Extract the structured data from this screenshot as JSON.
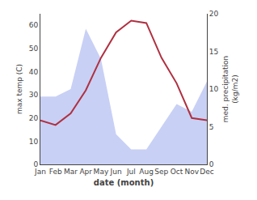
{
  "chart_data": {
    "type": "line",
    "categories": [
      "Jan",
      "Feb",
      "Mar",
      "Apr",
      "May",
      "Jun",
      "Jul",
      "Aug",
      "Sep",
      "Oct",
      "Nov",
      "Dec"
    ],
    "xlabel": "date (month)",
    "ylabel": "max temp (C)",
    "y2label": "med. precipitation\n(kg/m2)",
    "ylim": [
      0,
      65
    ],
    "yticks": [
      0,
      10,
      20,
      30,
      40,
      50,
      60
    ],
    "y2lim": [
      0,
      20
    ],
    "y2ticks": [
      0,
      5,
      10,
      15,
      20
    ],
    "grid": false,
    "series": [
      {
        "type": "line",
        "color": "#b03040",
        "values": [
          19,
          17,
          22,
          32,
          46,
          57,
          62,
          61,
          46,
          35,
          20,
          19
        ]
      },
      {
        "type": "area",
        "axis": "y2",
        "color": "#c8d0f5",
        "values": [
          9,
          9,
          10,
          18,
          14,
          4,
          2,
          2,
          5,
          8,
          7,
          11
        ]
      }
    ]
  }
}
